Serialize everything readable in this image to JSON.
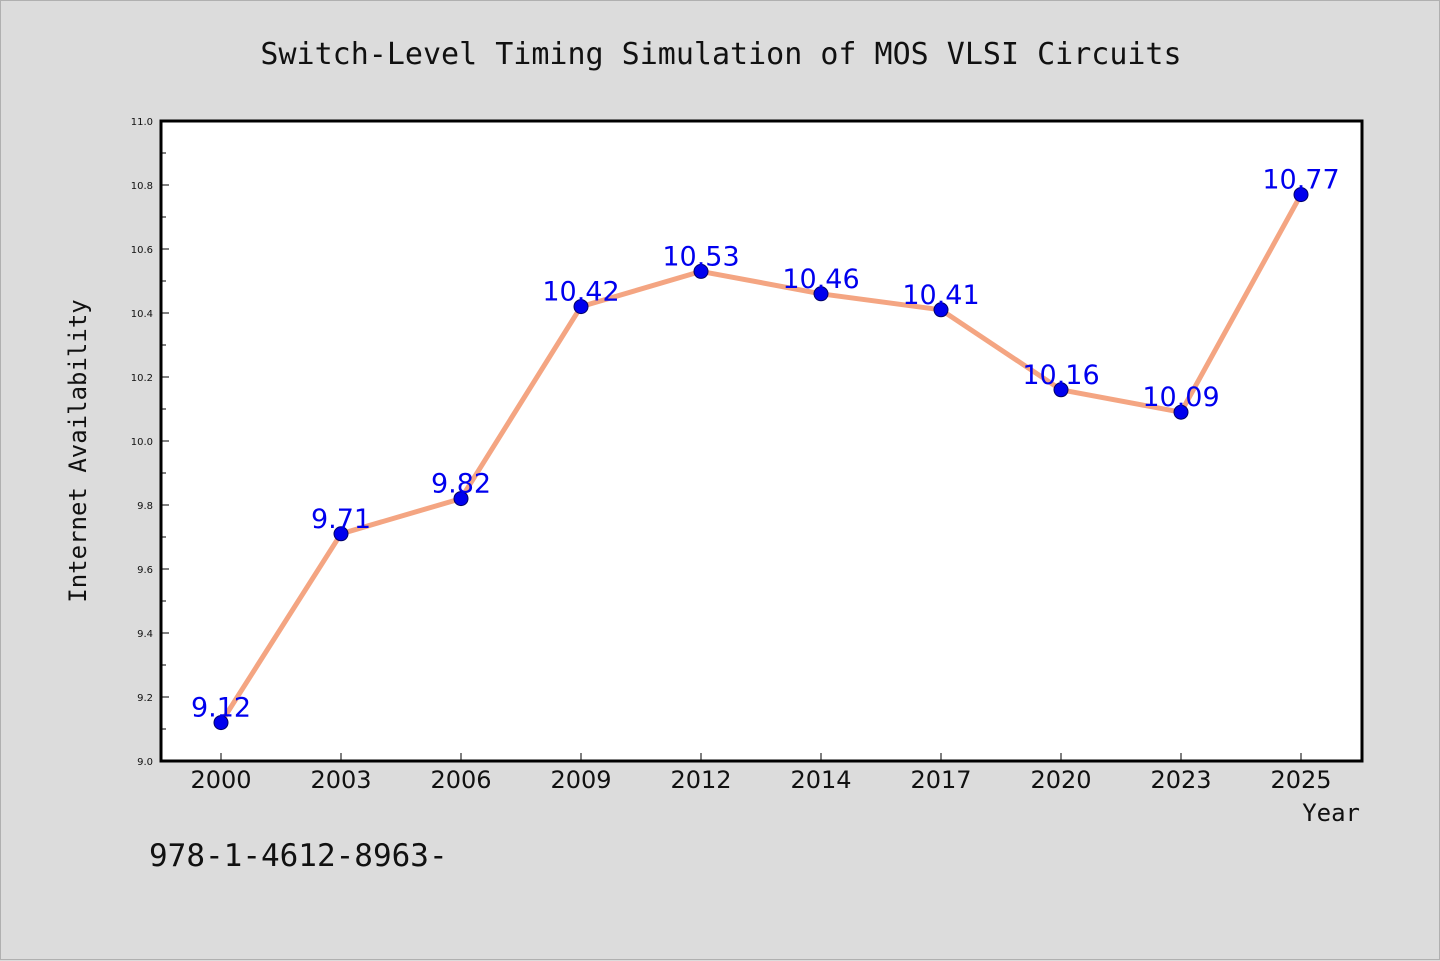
{
  "colors": {
    "background": "#dcdcdc",
    "plot_background": "#ffffff",
    "line": "#f4a582",
    "marker_fill": "#0000ee",
    "marker_edge": "#000066",
    "data_label": "#0000ee"
  },
  "footer": {
    "text": "978-1-4612-8963-"
  },
  "chart_data": {
    "type": "line",
    "title": "Switch-Level Timing Simulation of MOS VLSI Circuits",
    "xlabel": "Year",
    "ylabel": "Internet Availability",
    "categories": [
      "2000",
      "2003",
      "2006",
      "2009",
      "2012",
      "2014",
      "2017",
      "2020",
      "2023",
      "2025"
    ],
    "series": [
      {
        "values": [
          9.12,
          9.71,
          9.82,
          10.42,
          10.53,
          10.46,
          10.41,
          10.16,
          10.09,
          10.77
        ],
        "data_labels": [
          "9.12",
          "9.71",
          "9.82",
          "10.42",
          "10.53",
          "10.46",
          "10.41",
          "10.16",
          "10.09",
          "10.77"
        ]
      }
    ],
    "ylim": [
      9.0,
      11.0
    ],
    "yticks": [
      "9.0",
      "9.2",
      "9.4",
      "9.6",
      "9.8",
      "10.0",
      "10.2",
      "10.4",
      "10.6",
      "10.8",
      "11.0"
    ],
    "grid": false,
    "legend": "none"
  }
}
